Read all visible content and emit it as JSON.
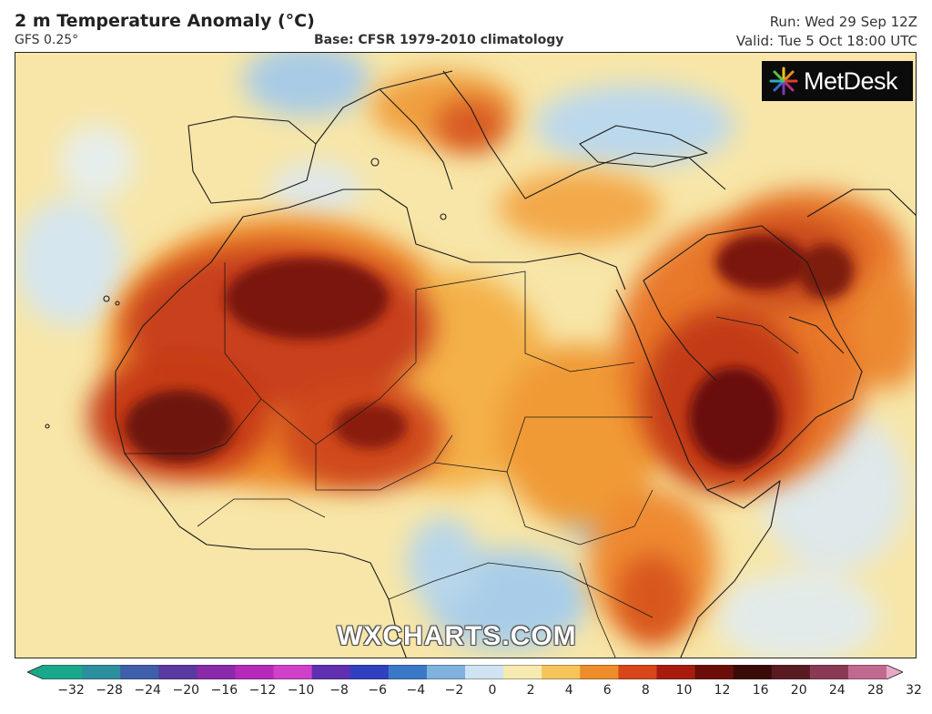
{
  "header": {
    "title": "2 m Temperature Anomaly (°C)",
    "model": "GFS 0.25°",
    "base": "Base: CFSR 1979-2010 climatology",
    "run": "Run: Wed 29 Sep 12Z",
    "valid": "Valid: Tue 5 Oct 18:00 UTC"
  },
  "logo": {
    "text": "MetDesk",
    "icon": "metdesk-starburst-icon"
  },
  "watermark": "WXCHARTS.COM",
  "colorbar": {
    "ticks": [
      "−32",
      "−28",
      "−24",
      "−20",
      "−16",
      "−12",
      "−10",
      "−8",
      "−6",
      "−4",
      "−2",
      "0",
      "2",
      "4",
      "6",
      "8",
      "10",
      "12",
      "16",
      "20",
      "24",
      "28",
      "32"
    ],
    "colors": [
      "#1aa88a",
      "#2c8f9e",
      "#3f5fa8",
      "#5a3aa0",
      "#8a2aa8",
      "#b62ab8",
      "#d040c8",
      "#6030b0",
      "#3040c0",
      "#3a78c8",
      "#7fb2dc",
      "#cfe4f0",
      "#f6eab0",
      "#f5c55a",
      "#ee8c2a",
      "#d8461a",
      "#a81c10",
      "#6b0e0a",
      "#3a0a08",
      "#5a1a22",
      "#8a3a55",
      "#c06a90",
      "#e8a8c8"
    ]
  }
}
